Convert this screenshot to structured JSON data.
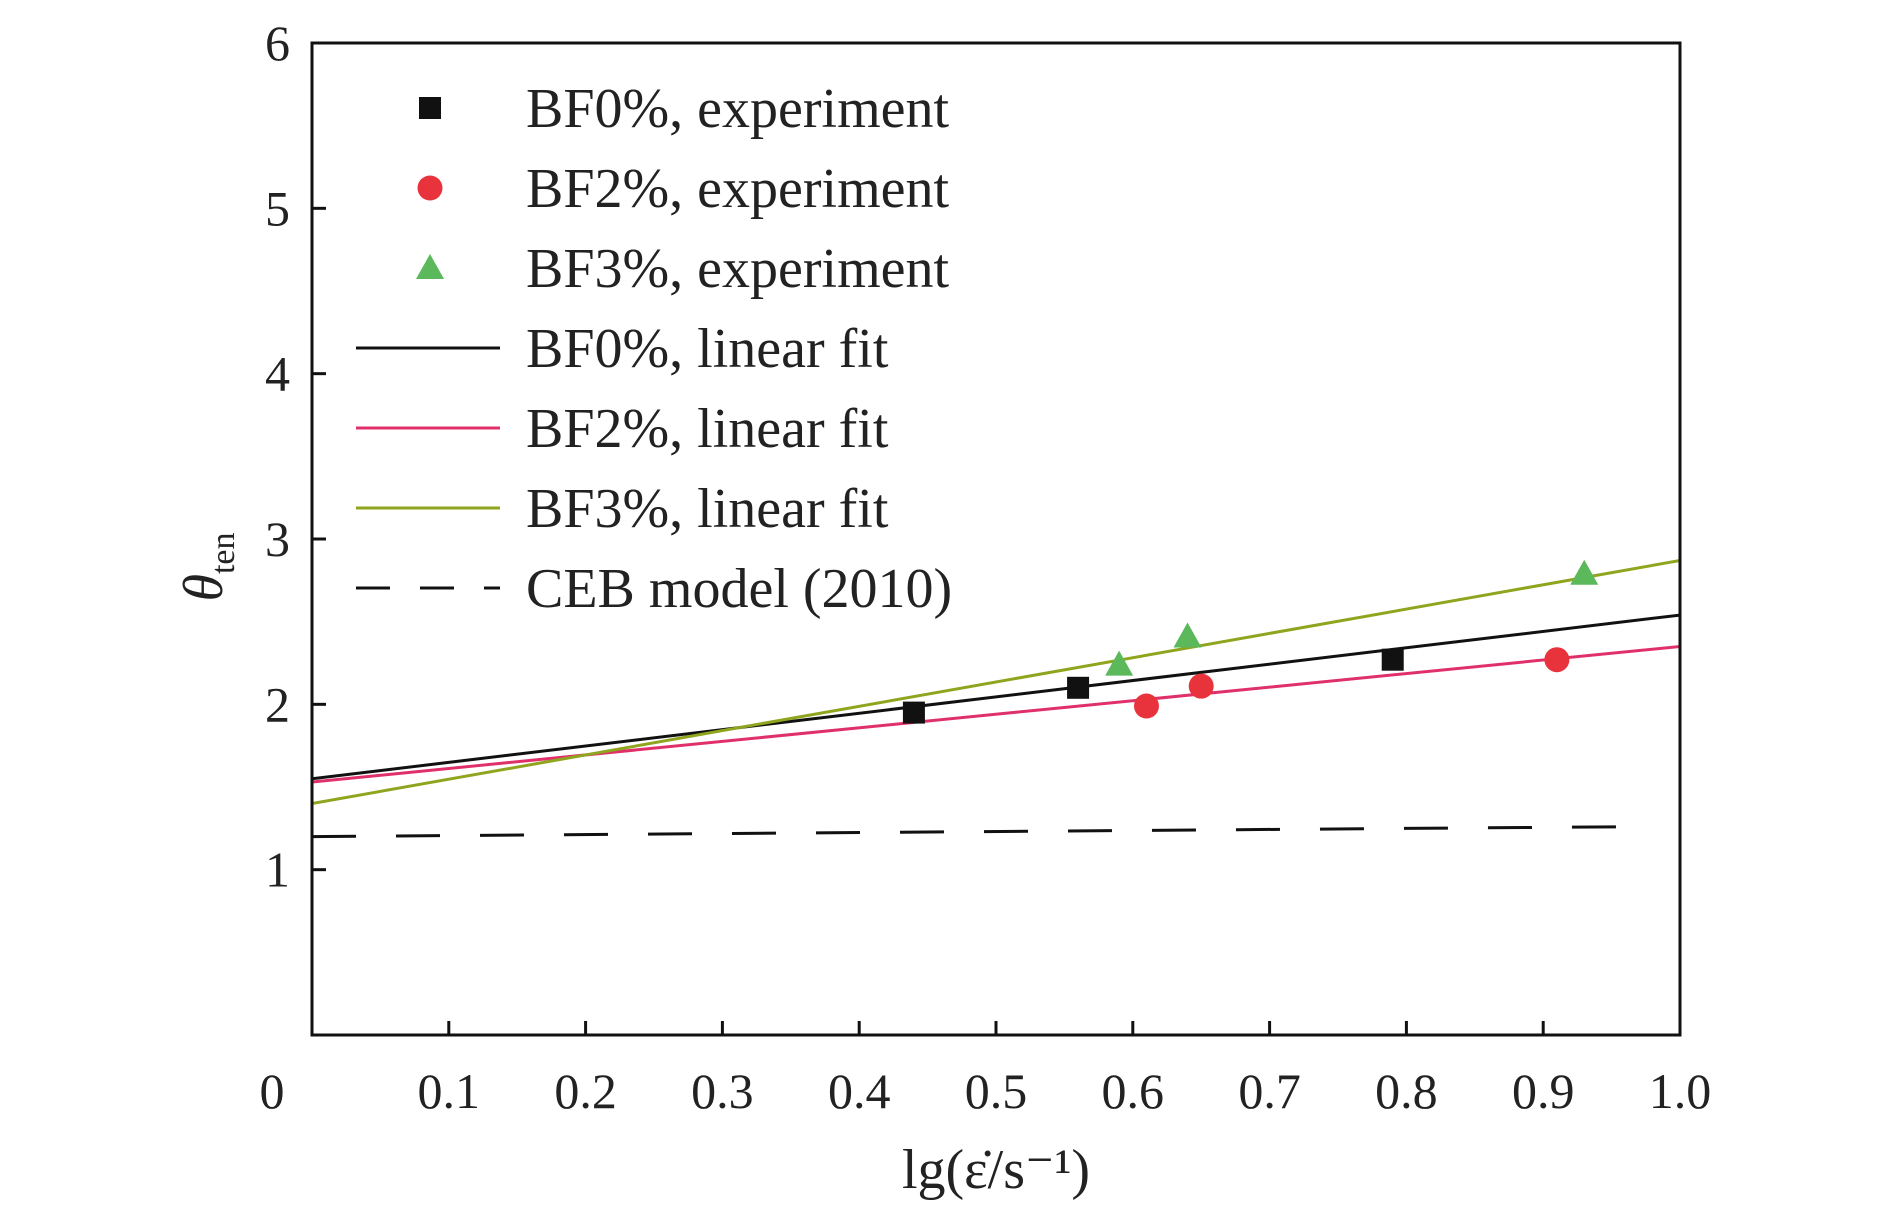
{
  "chart_data": {
    "type": "scatter",
    "xlabel": "lg(ε̇/s⁻¹)",
    "ylabel_main": "θ",
    "ylabel_sub": "ten",
    "xlim": [
      0,
      1.0
    ],
    "ylim": [
      0,
      6
    ],
    "x_ticks": [
      0,
      0.1,
      0.2,
      0.3,
      0.4,
      0.5,
      0.6,
      0.7,
      0.8,
      0.9,
      1.0
    ],
    "x_tick_labels": [
      "0",
      "0.1",
      "0.2",
      "0.3",
      "0.4",
      "0.5",
      "0.6",
      "0.7",
      "0.8",
      "0.9",
      "1.0"
    ],
    "y_ticks": [
      1,
      2,
      3,
      4,
      5,
      6
    ],
    "y_tick_labels": [
      "1",
      "2",
      "3",
      "4",
      "5",
      "6"
    ],
    "grid": false,
    "legend_position": "top-left",
    "series": [
      {
        "name": "BF0%, experiment",
        "kind": "points",
        "marker": "square",
        "color": "#111111",
        "x": [
          0.44,
          0.56,
          0.79
        ],
        "y": [
          1.95,
          2.1,
          2.27
        ]
      },
      {
        "name": "BF2%, experiment",
        "kind": "points",
        "marker": "circle",
        "color": "#e8333c",
        "x": [
          0.61,
          0.65,
          0.91
        ],
        "y": [
          1.99,
          2.11,
          2.27
        ]
      },
      {
        "name": "BF3%, experiment",
        "kind": "points",
        "marker": "triangle",
        "color": "#5bb85b",
        "x": [
          0.59,
          0.64,
          0.93
        ],
        "y": [
          2.24,
          2.41,
          2.79
        ]
      },
      {
        "name": "BF0%, linear fit",
        "kind": "line",
        "dash": "solid",
        "color": "#111111",
        "x": [
          0,
          1.0
        ],
        "y": [
          1.55,
          2.54
        ]
      },
      {
        "name": "BF2%, linear fit",
        "kind": "line",
        "dash": "solid",
        "color": "#e0306a",
        "x": [
          0,
          1.0
        ],
        "y": [
          1.53,
          2.35
        ]
      },
      {
        "name": "BF3%, linear fit",
        "kind": "line",
        "dash": "solid",
        "color": "#8fa51e",
        "x": [
          0,
          1.0
        ],
        "y": [
          1.4,
          2.87
        ]
      },
      {
        "name": "CEB model (2010)",
        "kind": "line",
        "dash": "dashed",
        "color": "#111111",
        "x": [
          0,
          0.97
        ],
        "y": [
          1.2,
          1.26
        ]
      }
    ]
  }
}
